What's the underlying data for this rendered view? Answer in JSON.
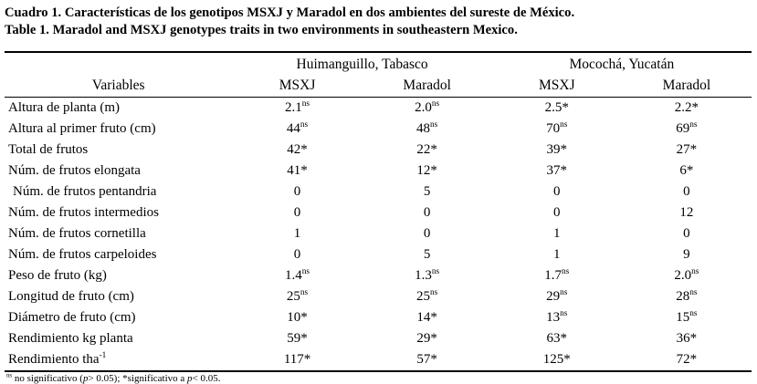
{
  "title": {
    "line1_es": "Cuadro 1. Características de los genotipos MSXJ y Maradol en dos ambientes del sureste de México.",
    "line2_en": "Table 1. Maradol and MSXJ genotypes traits in two environments in southeastern Mexico."
  },
  "table": {
    "variables_header": "Variables",
    "group_headers": [
      "Huimanguillo, Tabasco",
      "Mocochá, Yucatán"
    ],
    "sub_headers": [
      "MSXJ",
      "Maradol",
      "MSXJ",
      "Maradol"
    ],
    "rows": [
      {
        "variable": "Altura de planta (m)",
        "cells": [
          [
            "2.1",
            "ns"
          ],
          [
            "2.0",
            "ns"
          ],
          [
            "2.5*",
            ""
          ],
          [
            "2.2*",
            ""
          ]
        ]
      },
      {
        "variable": "Altura al primer fruto (cm)",
        "cells": [
          [
            "44",
            "ns"
          ],
          [
            "48",
            "ns"
          ],
          [
            "70",
            "ns"
          ],
          [
            "69",
            "ns"
          ]
        ]
      },
      {
        "variable": "Total de frutos",
        "cells": [
          [
            "42*",
            ""
          ],
          [
            "22*",
            ""
          ],
          [
            "39*",
            ""
          ],
          [
            "27*",
            ""
          ]
        ]
      },
      {
        "variable": "Núm. de frutos elongata",
        "cells": [
          [
            "41*",
            ""
          ],
          [
            "12*",
            ""
          ],
          [
            "37*",
            ""
          ],
          [
            "6*",
            ""
          ]
        ]
      },
      {
        "variable": "Núm. de frutos pentandria",
        "indent": true,
        "cells": [
          [
            "0",
            ""
          ],
          [
            "5",
            ""
          ],
          [
            "0",
            ""
          ],
          [
            "0",
            ""
          ]
        ]
      },
      {
        "variable": "Núm. de frutos intermedios",
        "cells": [
          [
            "0",
            ""
          ],
          [
            "0",
            ""
          ],
          [
            "0",
            ""
          ],
          [
            "12",
            ""
          ]
        ]
      },
      {
        "variable": "Núm. de frutos cornetilla",
        "cells": [
          [
            "1",
            ""
          ],
          [
            "0",
            ""
          ],
          [
            "1",
            ""
          ],
          [
            "0",
            ""
          ]
        ]
      },
      {
        "variable": "Núm. de frutos carpeloides",
        "cells": [
          [
            "0",
            ""
          ],
          [
            "5",
            ""
          ],
          [
            "1",
            ""
          ],
          [
            "9",
            ""
          ]
        ]
      },
      {
        "variable": "Peso de fruto (kg)",
        "cells": [
          [
            "1.4",
            "ns"
          ],
          [
            "1.3",
            "ns"
          ],
          [
            "1.7",
            "ns"
          ],
          [
            "2.0",
            "ns"
          ]
        ]
      },
      {
        "variable": "Longitud de fruto (cm)",
        "cells": [
          [
            "25",
            "ns"
          ],
          [
            "25",
            "ns"
          ],
          [
            "29",
            "ns"
          ],
          [
            "28",
            "ns"
          ]
        ]
      },
      {
        "variable": "Diámetro de fruto (cm)",
        "cells": [
          [
            "10*",
            ""
          ],
          [
            "14*",
            ""
          ],
          [
            "13",
            "ns"
          ],
          [
            "15",
            "ns"
          ]
        ]
      },
      {
        "variable": "Rendimiento kg planta",
        "cells": [
          [
            "59*",
            ""
          ],
          [
            "29*",
            ""
          ],
          [
            "63*",
            ""
          ],
          [
            "36*",
            ""
          ]
        ]
      },
      {
        "variable": "Rendimiento tha",
        "variable_sup": "-1",
        "cells": [
          [
            "117*",
            ""
          ],
          [
            "57*",
            ""
          ],
          [
            "125*",
            ""
          ],
          [
            "72*",
            ""
          ]
        ]
      }
    ]
  },
  "footnote": {
    "sup": "ns",
    "part1": " no significativo (",
    "p1": "p",
    "part2": "> 0.05); *significativo a ",
    "p2": "p",
    "part3": "< 0.05."
  }
}
